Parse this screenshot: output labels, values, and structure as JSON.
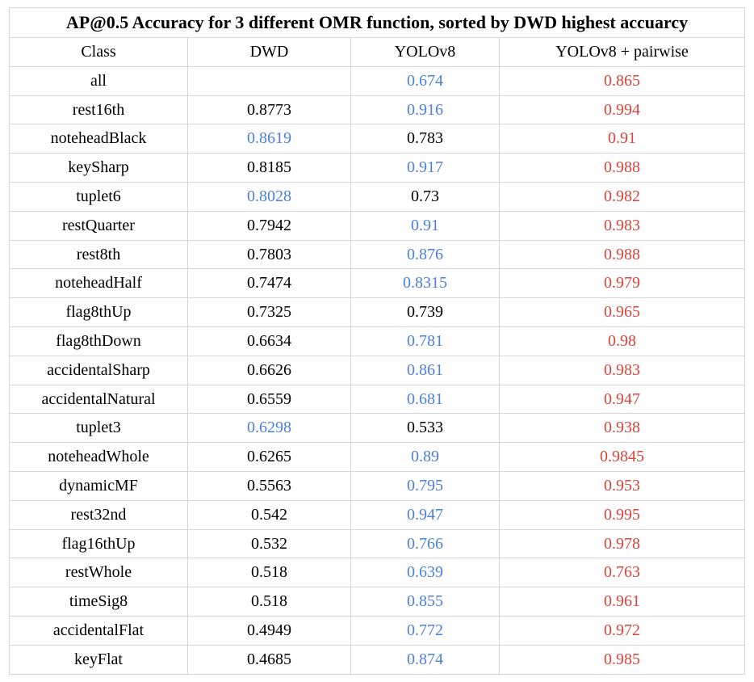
{
  "chart_data": {
    "type": "table",
    "title": "AP@0.5 Accuracy for 3 different OMR function, sorted by DWD highest accuarcy",
    "columns": [
      "Class",
      "DWD",
      "YOLOv8",
      "YOLOv8 + pairwise"
    ],
    "colors": {
      "default": "#000000",
      "blue": "#4a7fdb",
      "red": "#d9443a"
    },
    "rows": [
      {
        "cells": [
          "all",
          "",
          "0.674",
          "0.865"
        ],
        "colors": [
          "default",
          "default",
          "blue",
          "red"
        ]
      },
      {
        "cells": [
          "rest16th",
          "0.8773",
          "0.916",
          "0.994"
        ],
        "colors": [
          "default",
          "default",
          "blue",
          "red"
        ]
      },
      {
        "cells": [
          "noteheadBlack",
          "0.8619",
          "0.783",
          "0.91"
        ],
        "colors": [
          "default",
          "blue",
          "default",
          "red"
        ]
      },
      {
        "cells": [
          "keySharp",
          "0.8185",
          "0.917",
          "0.988"
        ],
        "colors": [
          "default",
          "default",
          "blue",
          "red"
        ]
      },
      {
        "cells": [
          "tuplet6",
          "0.8028",
          "0.73",
          "0.982"
        ],
        "colors": [
          "default",
          "blue",
          "default",
          "red"
        ]
      },
      {
        "cells": [
          "restQuarter",
          "0.7942",
          "0.91",
          "0.983"
        ],
        "colors": [
          "default",
          "default",
          "blue",
          "red"
        ]
      },
      {
        "cells": [
          "rest8th",
          "0.7803",
          "0.876",
          "0.988"
        ],
        "colors": [
          "default",
          "default",
          "blue",
          "red"
        ]
      },
      {
        "cells": [
          "noteheadHalf",
          "0.7474",
          "0.8315",
          "0.979"
        ],
        "colors": [
          "default",
          "default",
          "blue",
          "red"
        ]
      },
      {
        "cells": [
          "flag8thUp",
          "0.7325",
          "0.739",
          "0.965"
        ],
        "colors": [
          "default",
          "default",
          "default",
          "red"
        ]
      },
      {
        "cells": [
          "flag8thDown",
          "0.6634",
          "0.781",
          "0.98"
        ],
        "colors": [
          "default",
          "default",
          "blue",
          "red"
        ]
      },
      {
        "cells": [
          "accidentalSharp",
          "0.6626",
          "0.861",
          "0.983"
        ],
        "colors": [
          "default",
          "default",
          "blue",
          "red"
        ]
      },
      {
        "cells": [
          "accidentalNatural",
          "0.6559",
          "0.681",
          "0.947"
        ],
        "colors": [
          "default",
          "default",
          "blue",
          "red"
        ]
      },
      {
        "cells": [
          "tuplet3",
          "0.6298",
          "0.533",
          "0.938"
        ],
        "colors": [
          "default",
          "blue",
          "default",
          "red"
        ]
      },
      {
        "cells": [
          "noteheadWhole",
          "0.6265",
          "0.89",
          "0.9845"
        ],
        "colors": [
          "default",
          "default",
          "blue",
          "red"
        ]
      },
      {
        "cells": [
          "dynamicMF",
          "0.5563",
          "0.795",
          "0.953"
        ],
        "colors": [
          "default",
          "default",
          "blue",
          "red"
        ]
      },
      {
        "cells": [
          "rest32nd",
          "0.542",
          "0.947",
          "0.995"
        ],
        "colors": [
          "default",
          "default",
          "blue",
          "red"
        ]
      },
      {
        "cells": [
          "flag16thUp",
          "0.532",
          "0.766",
          "0.978"
        ],
        "colors": [
          "default",
          "default",
          "blue",
          "red"
        ]
      },
      {
        "cells": [
          "restWhole",
          "0.518",
          "0.639",
          "0.763"
        ],
        "colors": [
          "default",
          "default",
          "blue",
          "red"
        ]
      },
      {
        "cells": [
          "timeSig8",
          "0.518",
          "0.855",
          "0.961"
        ],
        "colors": [
          "default",
          "default",
          "blue",
          "red"
        ]
      },
      {
        "cells": [
          "accidentalFlat",
          "0.4949",
          "0.772",
          "0.972"
        ],
        "colors": [
          "default",
          "default",
          "blue",
          "red"
        ]
      },
      {
        "cells": [
          "keyFlat",
          "0.4685",
          "0.874",
          "0.985"
        ],
        "colors": [
          "default",
          "default",
          "blue",
          "red"
        ]
      }
    ]
  }
}
